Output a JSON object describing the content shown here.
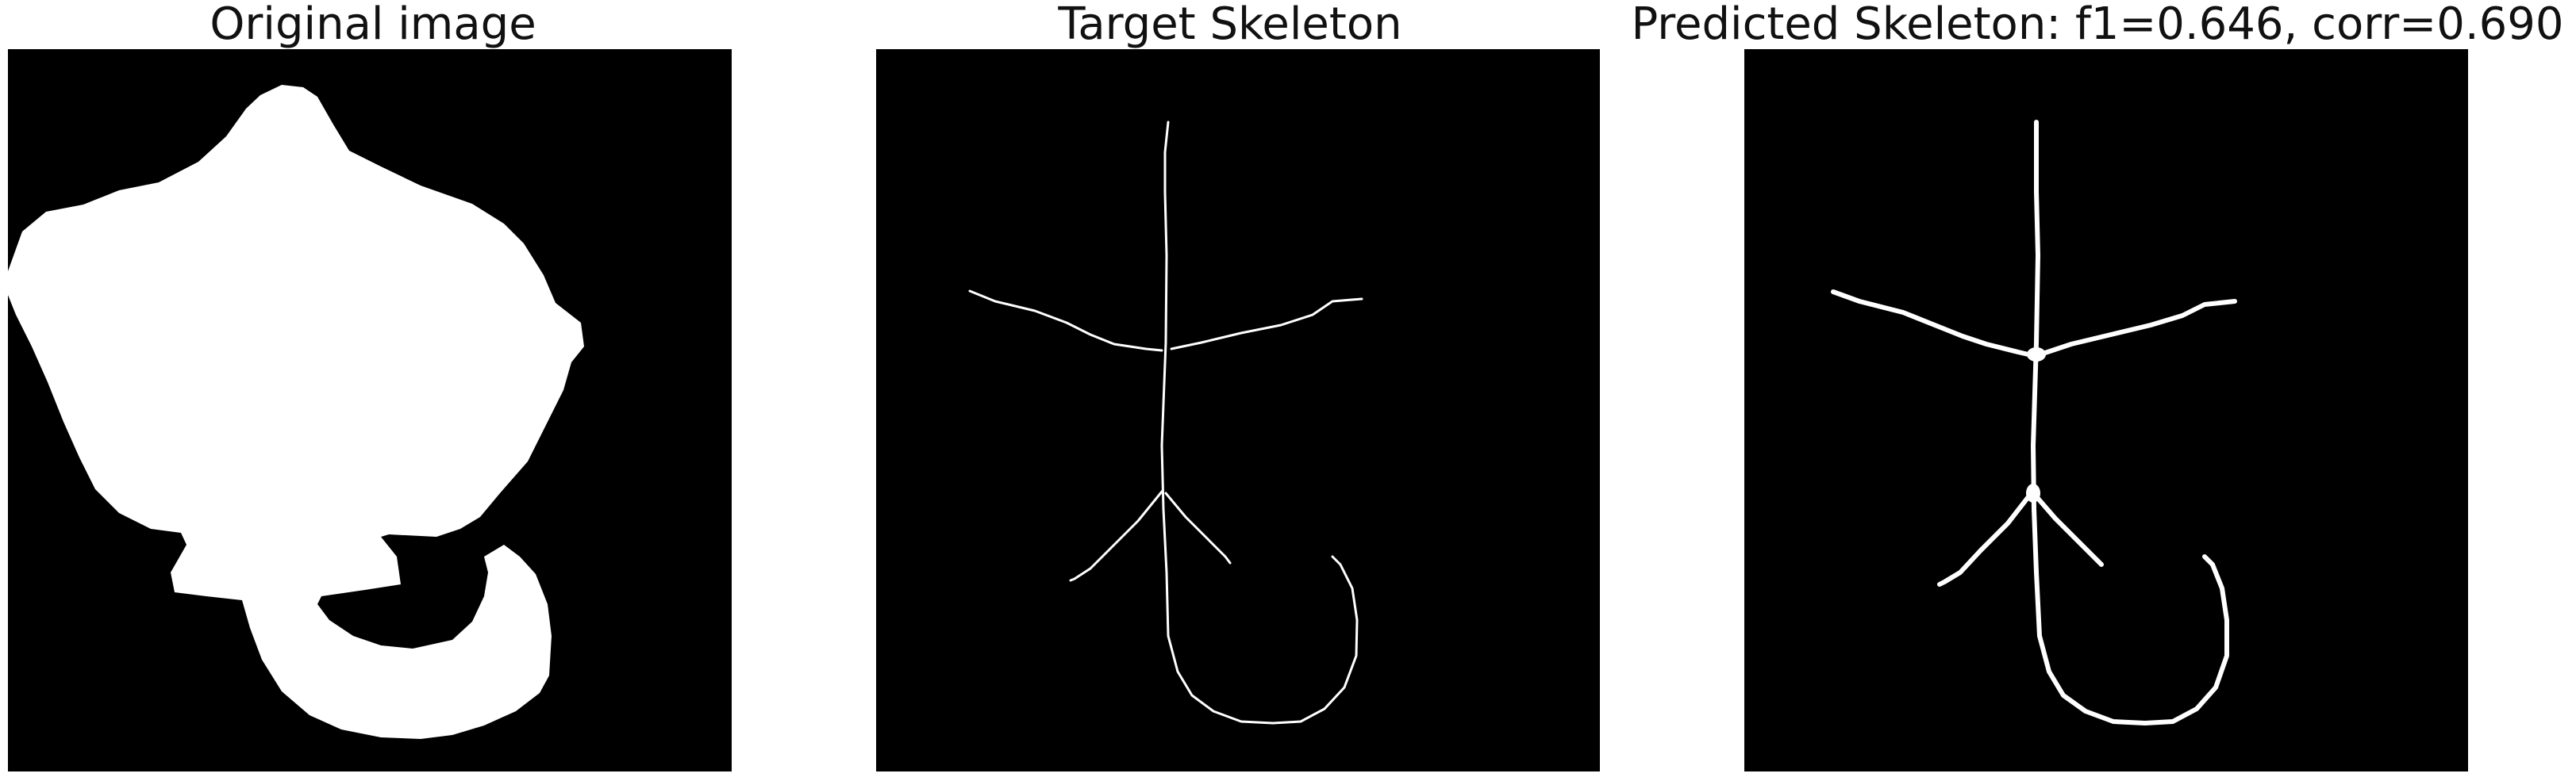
{
  "panels": [
    {
      "title": "Original image"
    },
    {
      "title": "Target Skeleton"
    },
    {
      "title": "Predicted Skeleton: f1=0.646, corr=0.690"
    }
  ],
  "colors": {
    "background": "#000000",
    "foreground": "#ffffff",
    "page": "#ffffff",
    "title_text": "#111111"
  }
}
